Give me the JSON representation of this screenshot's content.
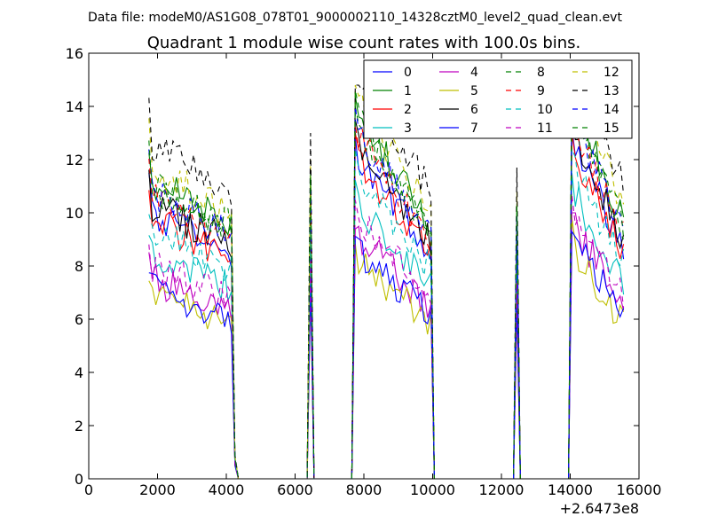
{
  "figure": {
    "suptitle": "Data file: modeM0/AS1G08_078T01_9000002110_14328cztM0_level2_quad_clean.evt"
  },
  "chart_data": {
    "type": "line",
    "title": "Quadrant 1 module wise count rates with 100.0s bins.",
    "xlabel": "",
    "ylabel": "",
    "x_offset_label": "+2.6473e8",
    "xlim": [
      0,
      16000
    ],
    "ylim": [
      0,
      16
    ],
    "x_ticks": [
      "0",
      "2000",
      "4000",
      "6000",
      "8000",
      "10000",
      "12000",
      "14000",
      "16000"
    ],
    "y_ticks": [
      "0",
      "2",
      "4",
      "6",
      "8",
      "10",
      "12",
      "14",
      "16"
    ],
    "grid": false,
    "legend": {
      "position": "top-right",
      "columns": 4
    },
    "series": [
      {
        "name": "0",
        "color": "#0000ff",
        "dash": "solid",
        "level": 1.02,
        "max_peak": 13.2
      },
      {
        "name": "1",
        "color": "#008000",
        "dash": "solid",
        "level": 1.15,
        "max_peak": 14.4
      },
      {
        "name": "2",
        "color": "#ff0000",
        "dash": "solid",
        "level": 1.0,
        "max_peak": 13.0
      },
      {
        "name": "3",
        "color": "#00bfbf",
        "dash": "solid",
        "level": 0.87,
        "max_peak": 11.5
      },
      {
        "name": "4",
        "color": "#bf00bf",
        "dash": "solid",
        "level": 0.77,
        "max_peak": 10.0
      },
      {
        "name": "5",
        "color": "#bfbf00",
        "dash": "solid",
        "level": 0.7,
        "max_peak": 9.8
      },
      {
        "name": "6",
        "color": "#000000",
        "dash": "solid",
        "level": 1.06,
        "max_peak": 13.5
      },
      {
        "name": "7",
        "color": "#0000ff",
        "dash": "solid",
        "level": 0.73,
        "max_peak": 10.5
      },
      {
        "name": "8",
        "color": "#008000",
        "dash": "dashed",
        "level": 1.12,
        "max_peak": 14.0
      },
      {
        "name": "9",
        "color": "#ff0000",
        "dash": "dashed",
        "level": 1.08,
        "max_peak": 13.3
      },
      {
        "name": "10",
        "color": "#00bfbf",
        "dash": "dashed",
        "level": 0.95,
        "max_peak": 12.4
      },
      {
        "name": "11",
        "color": "#bf00bf",
        "dash": "dashed",
        "level": 0.82,
        "max_peak": 11.0
      },
      {
        "name": "12",
        "color": "#bfbf00",
        "dash": "dashed",
        "level": 1.2,
        "max_peak": 14.8
      },
      {
        "name": "13",
        "color": "#000000",
        "dash": "dashed",
        "level": 1.3,
        "max_peak": 14.8
      },
      {
        "name": "14",
        "color": "#0000ff",
        "dash": "dashed",
        "level": 1.1,
        "max_peak": 14.2
      },
      {
        "name": "15",
        "color": "#008000",
        "dash": "dashed",
        "level": 1.14,
        "max_peak": 14.6
      }
    ],
    "x_start": 1750,
    "x_end": 15600,
    "bin_width": 100,
    "segments": [
      {
        "kind": "active",
        "x_start": 1750,
        "x_end": 4150,
        "base_start": 9.8,
        "base_end": 8.3,
        "peak": null
      },
      {
        "kind": "drop",
        "x": 4250,
        "value": 0.7
      },
      {
        "kind": "zero",
        "x_start": 4350,
        "x_end": 6250
      },
      {
        "kind": "spike",
        "x": 6450,
        "value": 10.0
      },
      {
        "kind": "zero",
        "x_start": 6650,
        "x_end": 7650
      },
      {
        "kind": "active",
        "x_start": 7750,
        "x_end": 9950,
        "base_start": 12.0,
        "base_end": 8.3,
        "peak": null
      },
      {
        "kind": "zero",
        "x_start": 10050,
        "x_end": 12150
      },
      {
        "kind": "spike",
        "x": 12300,
        "value": 9.5
      },
      {
        "kind": "spike",
        "x": 12450,
        "value": 9.0
      },
      {
        "kind": "zero",
        "x_start": 12800,
        "x_end": 13850
      },
      {
        "kind": "active",
        "x_start": 14050,
        "x_end": 15600,
        "base_start": 12.5,
        "base_end": 8.3,
        "peak": null
      }
    ]
  }
}
